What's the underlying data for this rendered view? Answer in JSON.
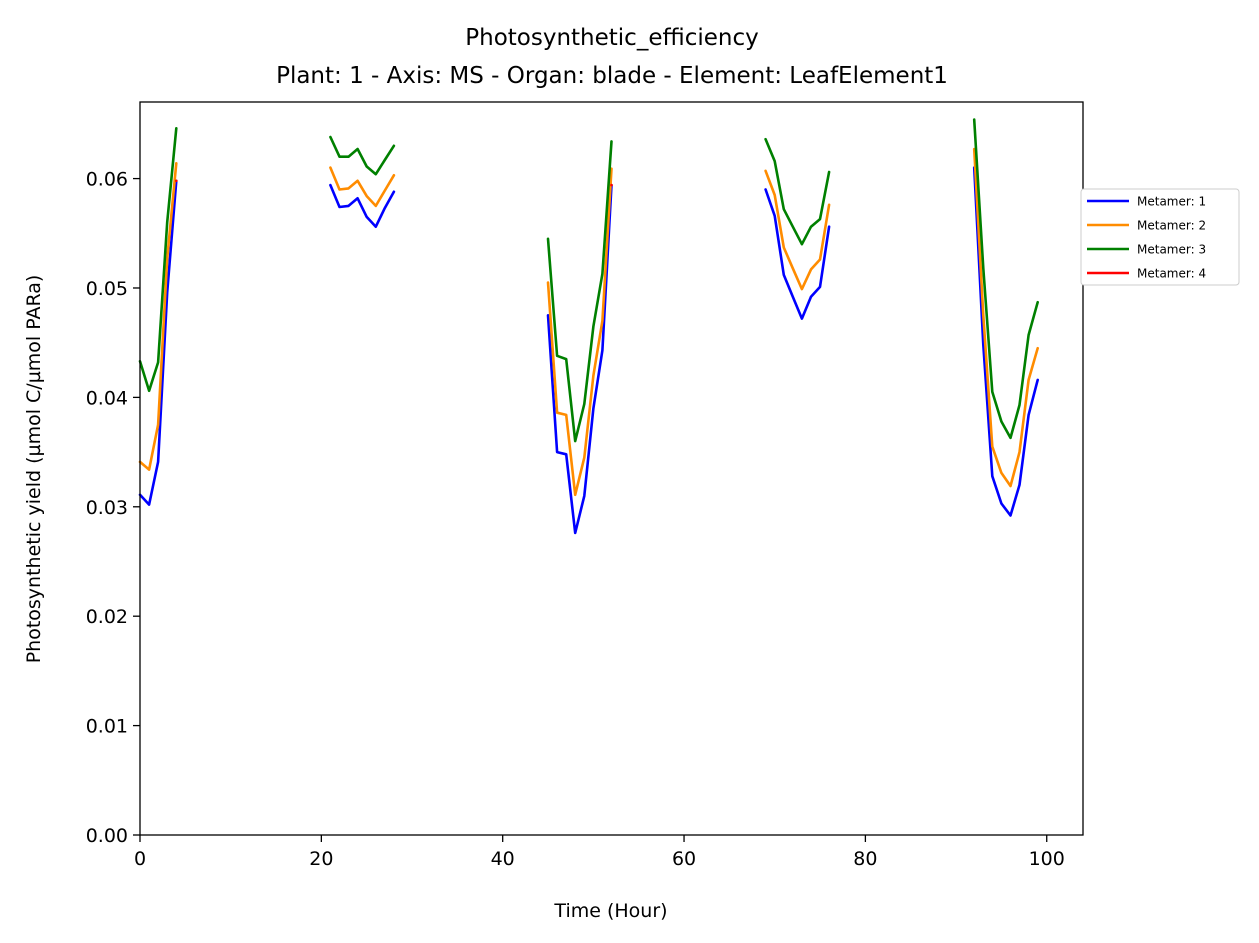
{
  "chart_data": {
    "type": "line",
    "title": "Photosynthetic_efficiency",
    "subtitle": "Plant: 1 - Axis: MS - Organ: blade - Element: LeafElement1",
    "xlabel": "Time (Hour)",
    "ylabel": "Photosynthetic yield (µmol C/µmol PARa)",
    "xlim": [
      0,
      104
    ],
    "ylim": [
      0,
      0.067
    ],
    "xticks": [
      "0",
      "20",
      "40",
      "60",
      "80",
      "100"
    ],
    "yticks": [
      "0.00",
      "0.01",
      "0.02",
      "0.03",
      "0.04",
      "0.05",
      "0.06"
    ],
    "grid": false,
    "legend_position": "right, outside plot",
    "series": [
      {
        "name": "Metamer: 1",
        "color": "#0000ff",
        "segments": [
          [
            [
              0,
              0.0311
            ],
            [
              1,
              0.0302
            ],
            [
              2,
              0.0341
            ],
            [
              3,
              0.0496
            ],
            [
              4,
              0.0598
            ]
          ],
          [
            [
              21,
              0.0594
            ],
            [
              22,
              0.0574
            ],
            [
              23,
              0.0575
            ],
            [
              24,
              0.0582
            ],
            [
              25,
              0.0565
            ],
            [
              26,
              0.0556
            ],
            [
              27,
              0.0573
            ],
            [
              28,
              0.0588
            ]
          ],
          [
            [
              45,
              0.0475
            ],
            [
              46,
              0.035
            ],
            [
              47,
              0.0348
            ],
            [
              48,
              0.0276
            ],
            [
              49,
              0.031
            ],
            [
              50,
              0.039
            ],
            [
              51,
              0.0443
            ],
            [
              52,
              0.0594
            ]
          ],
          [
            [
              69,
              0.059
            ],
            [
              70,
              0.0566
            ],
            [
              71,
              0.0512
            ],
            [
              72,
              0.0492
            ],
            [
              73,
              0.0472
            ],
            [
              74,
              0.0492
            ],
            [
              75,
              0.0501
            ],
            [
              76,
              0.0556
            ]
          ],
          [
            [
              92,
              0.061
            ],
            [
              93,
              0.0448
            ],
            [
              94,
              0.0328
            ],
            [
              95,
              0.0303
            ],
            [
              96,
              0.0292
            ],
            [
              97,
              0.032
            ],
            [
              98,
              0.0384
            ],
            [
              99,
              0.0416
            ]
          ]
        ]
      },
      {
        "name": "Metamer: 2",
        "color": "#ff8c00",
        "segments": [
          [
            [
              0,
              0.0341
            ],
            [
              1,
              0.0334
            ],
            [
              2,
              0.0375
            ],
            [
              3,
              0.0527
            ],
            [
              4,
              0.0614
            ]
          ],
          [
            [
              21,
              0.061
            ],
            [
              22,
              0.059
            ],
            [
              23,
              0.0591
            ],
            [
              24,
              0.0598
            ],
            [
              25,
              0.0584
            ],
            [
              26,
              0.0575
            ],
            [
              27,
              0.0589
            ],
            [
              28,
              0.0603
            ]
          ],
          [
            [
              45,
              0.0505
            ],
            [
              46,
              0.0386
            ],
            [
              47,
              0.0384
            ],
            [
              48,
              0.0311
            ],
            [
              49,
              0.0345
            ],
            [
              50,
              0.042
            ],
            [
              51,
              0.047
            ],
            [
              52,
              0.0609
            ]
          ],
          [
            [
              69,
              0.0607
            ],
            [
              70,
              0.0585
            ],
            [
              71,
              0.0537
            ],
            [
              72,
              0.0518
            ],
            [
              73,
              0.0499
            ],
            [
              74,
              0.0517
            ],
            [
              75,
              0.0526
            ],
            [
              76,
              0.0576
            ]
          ],
          [
            [
              92,
              0.0627
            ],
            [
              93,
              0.0475
            ],
            [
              94,
              0.0355
            ],
            [
              95,
              0.0331
            ],
            [
              96,
              0.0319
            ],
            [
              97,
              0.035
            ],
            [
              98,
              0.0416
            ],
            [
              99,
              0.0445
            ]
          ]
        ]
      },
      {
        "name": "Metamer: 3",
        "color": "#008000",
        "segments": [
          [
            [
              0,
              0.0433
            ],
            [
              1,
              0.0406
            ],
            [
              2,
              0.0432
            ],
            [
              3,
              0.056
            ],
            [
              4,
              0.0646
            ]
          ],
          [
            [
              21,
              0.0638
            ],
            [
              22,
              0.062
            ],
            [
              23,
              0.062
            ],
            [
              24,
              0.0627
            ],
            [
              25,
              0.0611
            ],
            [
              26,
              0.0604
            ],
            [
              27,
              0.0617
            ],
            [
              28,
              0.063
            ]
          ],
          [
            [
              45,
              0.0545
            ],
            [
              46,
              0.0438
            ],
            [
              47,
              0.0435
            ],
            [
              48,
              0.036
            ],
            [
              49,
              0.0394
            ],
            [
              50,
              0.0465
            ],
            [
              51,
              0.0513
            ],
            [
              52,
              0.0634
            ]
          ],
          [
            [
              69,
              0.0636
            ],
            [
              70,
              0.0616
            ],
            [
              71,
              0.0572
            ],
            [
              72,
              0.0556
            ],
            [
              73,
              0.054
            ],
            [
              74,
              0.0556
            ],
            [
              75,
              0.0563
            ],
            [
              76,
              0.0606
            ]
          ],
          [
            [
              92,
              0.0654
            ],
            [
              93,
              0.0518
            ],
            [
              94,
              0.0405
            ],
            [
              95,
              0.0378
            ],
            [
              96,
              0.0363
            ],
            [
              97,
              0.0393
            ],
            [
              98,
              0.0457
            ],
            [
              99,
              0.0487
            ]
          ]
        ]
      },
      {
        "name": "Metamer: 4",
        "color": "#ff0000",
        "segments": [
          [
            [
              4,
              0.0598
            ],
            [
              4,
              0.0598
            ]
          ],
          [
            [
              52,
              0.0594
            ],
            [
              52,
              0.0594
            ]
          ]
        ]
      }
    ]
  }
}
